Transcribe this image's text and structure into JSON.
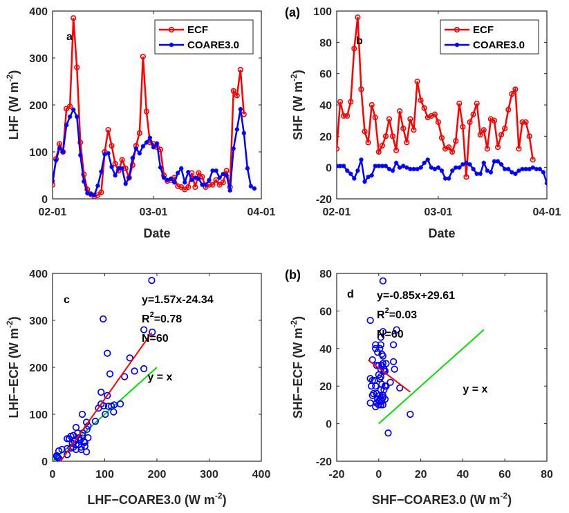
{
  "chart_data": [
    {
      "id": "a",
      "type": "line",
      "panel_tag": "",
      "inner_label": "a",
      "xlabel": "Date",
      "ylabel": "LHF (W m^-2)",
      "ylabel_main": "LHF",
      "unit_base": "(W m",
      "unit_exp": "-2",
      "x_ticks": [
        "02-01",
        "03-01",
        "04-01"
      ],
      "x_tick_days": [
        0,
        29,
        60
      ],
      "xlim_days": [
        0,
        60
      ],
      "ylim": [
        0,
        400
      ],
      "y_ticks": [
        0,
        100,
        200,
        300,
        400
      ],
      "legend": [
        "ECF",
        "COARE3.0"
      ],
      "legend_position": "top-right",
      "series": [
        {
          "name": "ECF",
          "color": "#ff0000",
          "marker": "circle",
          "values": [
            30,
            85,
            117,
            100,
            192,
            197,
            385,
            280,
            120,
            52,
            20,
            10,
            5,
            8,
            14,
            100,
            147,
            113,
            75,
            60,
            83,
            65,
            45,
            72,
            113,
            140,
            303,
            186,
            120,
            117,
            110,
            105,
            50,
            38,
            40,
            45,
            27,
            25,
            20,
            25,
            55,
            25,
            55,
            47,
            25,
            30,
            30,
            40,
            30,
            35,
            60,
            25,
            230,
            220,
            275,
            180
          ]
        },
        {
          "name": "COARE3.0",
          "color": "#0000ff",
          "marker": "asterisk",
          "values": [
            38,
            82,
            108,
            100,
            157,
            175,
            190,
            175,
            93,
            37,
            12,
            10,
            8,
            28,
            58,
            95,
            97,
            68,
            50,
            65,
            65,
            32,
            45,
            87,
            107,
            97,
            112,
            120,
            130,
            110,
            118,
            67,
            45,
            40,
            43,
            35,
            55,
            65,
            35,
            57,
            40,
            45,
            43,
            30,
            30,
            40,
            60,
            60,
            45,
            53,
            50,
            18,
            107,
            148,
            191,
            140,
            65,
            27,
            22
          ]
        }
      ]
    },
    {
      "id": "b",
      "type": "line",
      "panel_tag": "(a)",
      "inner_label": "b",
      "xlabel": "Date",
      "ylabel": "SHF (W m^-2)",
      "ylabel_main": "SHF",
      "unit_base": "(W m",
      "unit_exp": "-2",
      "x_ticks": [
        "02-01",
        "03-01",
        "04-01"
      ],
      "x_tick_days": [
        0,
        29,
        60
      ],
      "xlim_days": [
        0,
        60
      ],
      "ylim": [
        -20,
        100
      ],
      "y_ticks": [
        -20,
        0,
        20,
        40,
        60,
        80,
        100
      ],
      "legend": [
        "ECF",
        "COARE3.0"
      ],
      "legend_position": "top-right",
      "series": [
        {
          "name": "ECF",
          "color": "#ff0000",
          "marker": "circle",
          "values": [
            12,
            42,
            33,
            33,
            42,
            76,
            96,
            50,
            23,
            16,
            40,
            32,
            10,
            14,
            20,
            31,
            20,
            11,
            36,
            25,
            16,
            31,
            24,
            55,
            43,
            38,
            32,
            33,
            34,
            29,
            19,
            12,
            13,
            10,
            17,
            41,
            26,
            -6,
            29,
            34,
            41,
            21,
            24,
            12,
            31,
            30,
            13,
            21,
            25,
            37,
            47,
            50,
            12,
            29,
            29,
            20,
            5
          ]
        },
        {
          "name": "COARE3.0",
          "color": "#0000ff",
          "marker": "asterisk",
          "values": [
            1,
            1,
            1,
            -2,
            -4,
            -7,
            -2,
            5,
            -9,
            -6,
            -5,
            1,
            1,
            1,
            1,
            -1,
            -2,
            3,
            0,
            1,
            0,
            -1,
            -1,
            -1,
            0,
            3,
            5,
            0,
            -1,
            0,
            -2,
            -7,
            -7,
            -2,
            0,
            0,
            2,
            3,
            2,
            -1,
            -4,
            -4,
            3,
            -2,
            -3,
            4,
            4,
            2,
            -1,
            -1,
            -3,
            -4,
            -2,
            -1,
            -1,
            -1,
            0,
            -1,
            -1,
            -3,
            -10,
            -15,
            -6,
            0,
            1
          ]
        }
      ]
    },
    {
      "id": "c",
      "type": "scatter",
      "panel_tag": "",
      "inner_label": "c",
      "xlabel": "LHF-COARE3.0 (W m^-2)",
      "xlabel_main": "LHF−COARE3.0",
      "ylabel": "LHF-ECF (W m^-2)",
      "ylabel_main": "LHF−ECF",
      "unit_base": "(W m",
      "unit_exp": "-2",
      "xlim": [
        0,
        400
      ],
      "ylim": [
        0,
        400
      ],
      "x_ticks": [
        0,
        100,
        200,
        300,
        400
      ],
      "y_ticks": [
        0,
        100,
        200,
        300,
        400
      ],
      "fit": {
        "slope": 1.57,
        "intercept": -24.34,
        "x_range": [
          15,
          190
        ],
        "color": "#ff0000"
      },
      "identity": {
        "x_range": [
          0,
          200
        ],
        "color": "#00e000",
        "label": "y = x"
      },
      "annotations": {
        "equation": "y=1.57x-24.34",
        "r2_prefix": "R",
        "r2_exp": "2",
        "r2_value": "=0.78",
        "n": "N=60"
      },
      "points": [
        [
          190,
          385
        ],
        [
          97,
          303
        ],
        [
          175,
          280
        ],
        [
          191,
          275
        ],
        [
          105,
          230
        ],
        [
          148,
          220
        ],
        [
          157,
          192
        ],
        [
          175,
          197
        ],
        [
          110,
          186
        ],
        [
          138,
          180
        ],
        [
          93,
          147
        ],
        [
          105,
          140
        ],
        [
          93,
          122
        ],
        [
          98,
          118
        ],
        [
          107,
          117
        ],
        [
          113,
          117
        ],
        [
          118,
          120
        ],
        [
          130,
          122
        ],
        [
          88,
          113
        ],
        [
          117,
          105
        ],
        [
          101,
          100
        ],
        [
          57,
          100
        ],
        [
          82,
          85
        ],
        [
          65,
          83
        ],
        [
          68,
          75
        ],
        [
          45,
          72
        ],
        [
          66,
          68
        ],
        [
          58,
          60
        ],
        [
          48,
          60
        ],
        [
          57,
          55
        ],
        [
          40,
          55
        ],
        [
          35,
          53
        ],
        [
          32,
          48
        ],
        [
          28,
          48
        ],
        [
          50,
          50
        ],
        [
          68,
          50
        ],
        [
          53,
          45
        ],
        [
          42,
          42
        ],
        [
          38,
          38
        ],
        [
          60,
          42
        ],
        [
          45,
          35
        ],
        [
          50,
          35
        ],
        [
          55,
          30
        ],
        [
          62,
          32
        ],
        [
          40,
          30
        ],
        [
          35,
          28
        ],
        [
          45,
          25
        ],
        [
          55,
          25
        ],
        [
          28,
          27
        ],
        [
          18,
          25
        ],
        [
          12,
          22
        ],
        [
          65,
          20
        ],
        [
          28,
          14
        ],
        [
          8,
          12
        ],
        [
          10,
          8
        ],
        [
          8,
          10
        ],
        [
          12,
          6
        ],
        [
          38,
          38
        ],
        [
          62,
          40
        ],
        [
          44,
          46
        ]
      ]
    },
    {
      "id": "d",
      "type": "scatter",
      "panel_tag": "(b)",
      "inner_label": "d",
      "xlabel": "SHF-COARE3.0 (W m^-2)",
      "xlabel_main": "SHF−COARE3.0",
      "ylabel": "SHF-ECF (W m^-2)",
      "ylabel_main": "SHF−ECF",
      "unit_base": "(W m",
      "unit_exp": "-2",
      "xlim": [
        -20,
        80
      ],
      "ylim": [
        -20,
        80
      ],
      "x_ticks": [
        -20,
        0,
        20,
        40,
        60,
        80
      ],
      "y_ticks": [
        -20,
        0,
        20,
        40,
        60,
        80
      ],
      "fit": {
        "slope": -0.85,
        "intercept": 29.61,
        "x_range": [
          -5,
          15
        ],
        "color": "#ff0000"
      },
      "identity": {
        "x_range": [
          0,
          50
        ],
        "color": "#00e000",
        "label": "y = x"
      },
      "annotations": {
        "equation": "y=-0.85x+29.61",
        "r2_prefix": "R",
        "r2_exp": "2",
        "r2_value": "=0.03",
        "n": "N=60"
      },
      "points": [
        [
          2,
          76
        ],
        [
          -4,
          55
        ],
        [
          2,
          49
        ],
        [
          8.5,
          50
        ],
        [
          1,
          46
        ],
        [
          -1.5,
          42
        ],
        [
          1,
          42
        ],
        [
          7,
          42
        ],
        [
          -1.5,
          40
        ],
        [
          -0.5,
          38
        ],
        [
          0.5,
          40
        ],
        [
          2,
          36
        ],
        [
          1.5,
          37
        ],
        [
          -3,
          34
        ],
        [
          3.5,
          32
        ],
        [
          7,
          33
        ],
        [
          0,
          31
        ],
        [
          1.5,
          31
        ],
        [
          2.5,
          29
        ],
        [
          1,
          29
        ],
        [
          7.5,
          29
        ],
        [
          2.5,
          28
        ],
        [
          3,
          28
        ],
        [
          1,
          25
        ],
        [
          5.5,
          22
        ],
        [
          -4,
          24
        ],
        [
          -3,
          23
        ],
        [
          1.5,
          21
        ],
        [
          3,
          20
        ],
        [
          -1.5,
          20
        ],
        [
          10,
          19
        ],
        [
          2.5,
          18
        ],
        [
          -3.5,
          20
        ],
        [
          -2.5,
          16
        ],
        [
          -1,
          16
        ],
        [
          0.5,
          15
        ],
        [
          2,
          14
        ],
        [
          1,
          13
        ],
        [
          -4,
          11
        ],
        [
          -1,
          11
        ],
        [
          0.5,
          12
        ],
        [
          3,
          13
        ],
        [
          -1.5,
          9
        ],
        [
          1,
          10
        ],
        [
          0,
          12
        ],
        [
          0,
          10
        ],
        [
          15,
          5
        ],
        [
          4.5,
          -5
        ],
        [
          2,
          15
        ],
        [
          3.5,
          20
        ],
        [
          -0.5,
          13
        ],
        [
          1.5,
          12
        ],
        [
          -2,
          23
        ],
        [
          0,
          26
        ],
        [
          2,
          32
        ],
        [
          -1,
          31
        ],
        [
          2,
          10
        ],
        [
          1,
          18
        ],
        [
          0.5,
          24
        ],
        [
          -3,
          15
        ]
      ]
    }
  ]
}
